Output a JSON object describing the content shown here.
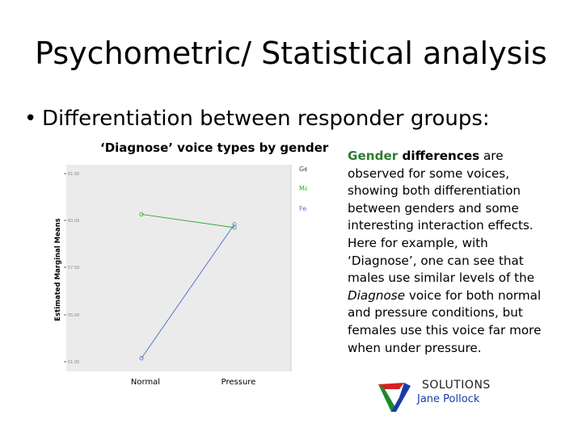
{
  "slide": {
    "title": "Psychometric/ Statistical analysis",
    "bullet": "Differentiation between responder groups:",
    "bullet_symbol": "•",
    "chart_caption": "‘Diagnose’ voice types by gender"
  },
  "paragraph": {
    "gender_word": "Gender",
    "diff_word": " differences",
    "rest": " are observed for some voices, showing both differentiation between genders and some interesting interaction effects. Here for example, with ‘Diagnose’, one can see that males use similar levels of the ",
    "diagnose_italic": "Diagnose",
    "tail": " voice for both normal and pressure conditions, but females use this voice far more when under pressure."
  },
  "logo": {
    "line1": "SOLUTIONS",
    "line2": "Jane Pollock"
  },
  "chart_data": {
    "type": "line",
    "ylabel": "Estimated Marginal Means",
    "categories": [
      "Normal",
      "Pressure"
    ],
    "legend_title": "Gender",
    "legend_position": "right",
    "series": [
      {
        "name": "Male",
        "values": [
          60.0,
          59.2
        ],
        "color": "#33aa33"
      },
      {
        "name": "Female",
        "values": [
          51.3,
          59.4
        ],
        "color": "#5577cc"
      }
    ],
    "yticks": [
      "51.00",
      "55.00",
      "57.50",
      "60.00",
      "61.00"
    ],
    "ylim": [
      50.5,
      63.0
    ]
  }
}
